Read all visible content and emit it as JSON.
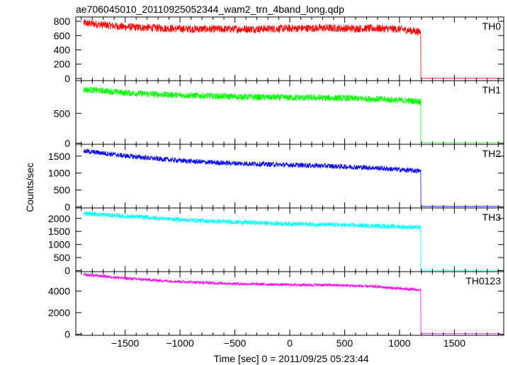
{
  "chart_data": {
    "type": "line",
    "title": "ae706045010_20110925052344_wam2_trn_4band_long.qdp",
    "xlabel": "Time [sec] 0 = 2011/09/25 05:23:44",
    "ylabel": "Counts/sec",
    "xlim": [
      -1950,
      1950
    ],
    "xticks": [
      -1500,
      -1000,
      -500,
      0,
      500,
      1000,
      1500
    ],
    "xtick_labels": [
      "−1500",
      "−1000",
      "−500",
      "0",
      "500",
      "1000",
      "1500"
    ],
    "drop_time": 1195,
    "grid": false,
    "panels": [
      {
        "name": "TH0",
        "color": "#ff0000",
        "ylim": [
          -30,
          860
        ],
        "yticks": [
          0,
          200,
          400,
          600,
          800
        ],
        "ytick_labels": [
          "0",
          "200",
          "400",
          "600",
          "800"
        ],
        "x": [
          -1880,
          -1700,
          -1500,
          -1200,
          -1000,
          -700,
          -500,
          -200,
          0,
          300,
          500,
          800,
          1000,
          1195
        ],
        "values": [
          775,
          750,
          720,
          705,
          695,
          690,
          690,
          695,
          700,
          705,
          700,
          700,
          690,
          650
        ],
        "noise": 55,
        "after_drop": 3
      },
      {
        "name": "TH1",
        "color": "#00ff00",
        "ylim": [
          -20,
          1050
        ],
        "yticks": [
          0,
          500
        ],
        "ytick_labels": [
          "0",
          "500"
        ],
        "x": [
          -1880,
          -1700,
          -1500,
          -1200,
          -1000,
          -700,
          -500,
          -200,
          0,
          300,
          500,
          800,
          1000,
          1195
        ],
        "values": [
          900,
          880,
          845,
          820,
          805,
          790,
          780,
          770,
          765,
          760,
          755,
          740,
          720,
          700
        ],
        "noise": 55,
        "after_drop": 5
      },
      {
        "name": "TH2",
        "color": "#0000ff",
        "ylim": [
          -30,
          1850
        ],
        "yticks": [
          0,
          500,
          1000,
          1500
        ],
        "ytick_labels": [
          "0",
          "500",
          "1000",
          "1500"
        ],
        "x": [
          -1880,
          -1700,
          -1500,
          -1200,
          -1000,
          -700,
          -500,
          -200,
          0,
          300,
          500,
          800,
          1000,
          1195
        ],
        "values": [
          1650,
          1590,
          1510,
          1420,
          1370,
          1310,
          1290,
          1260,
          1240,
          1215,
          1190,
          1150,
          1100,
          1060
        ],
        "noise": 75,
        "after_drop": 15
      },
      {
        "name": "TH3",
        "color": "#00ffff",
        "ylim": [
          -40,
          2400
        ],
        "yticks": [
          0,
          500,
          1000,
          1500,
          2000
        ],
        "ytick_labels": [
          "0",
          "500",
          "1000",
          "1500",
          "2000"
        ],
        "x": [
          -1880,
          -1700,
          -1500,
          -1200,
          -1000,
          -700,
          -500,
          -200,
          0,
          300,
          500,
          800,
          1000,
          1195
        ],
        "values": [
          2200,
          2140,
          2080,
          2010,
          1950,
          1890,
          1860,
          1820,
          1790,
          1760,
          1740,
          1710,
          1680,
          1650
        ],
        "noise": 90,
        "after_drop": 15
      },
      {
        "name": "TH0123",
        "color": "#ff00ff",
        "ylim": [
          -100,
          5800
        ],
        "yticks": [
          0,
          2000,
          4000
        ],
        "ytick_labels": [
          "0",
          "2000",
          "4000"
        ],
        "x": [
          -1880,
          -1700,
          -1500,
          -1200,
          -1000,
          -700,
          -500,
          -200,
          0,
          300,
          500,
          800,
          1000,
          1195
        ],
        "values": [
          5500,
          5380,
          5180,
          4980,
          4880,
          4750,
          4680,
          4620,
          4580,
          4560,
          4520,
          4400,
          4220,
          4100
        ],
        "noise": 140,
        "after_drop": 50
      }
    ]
  }
}
